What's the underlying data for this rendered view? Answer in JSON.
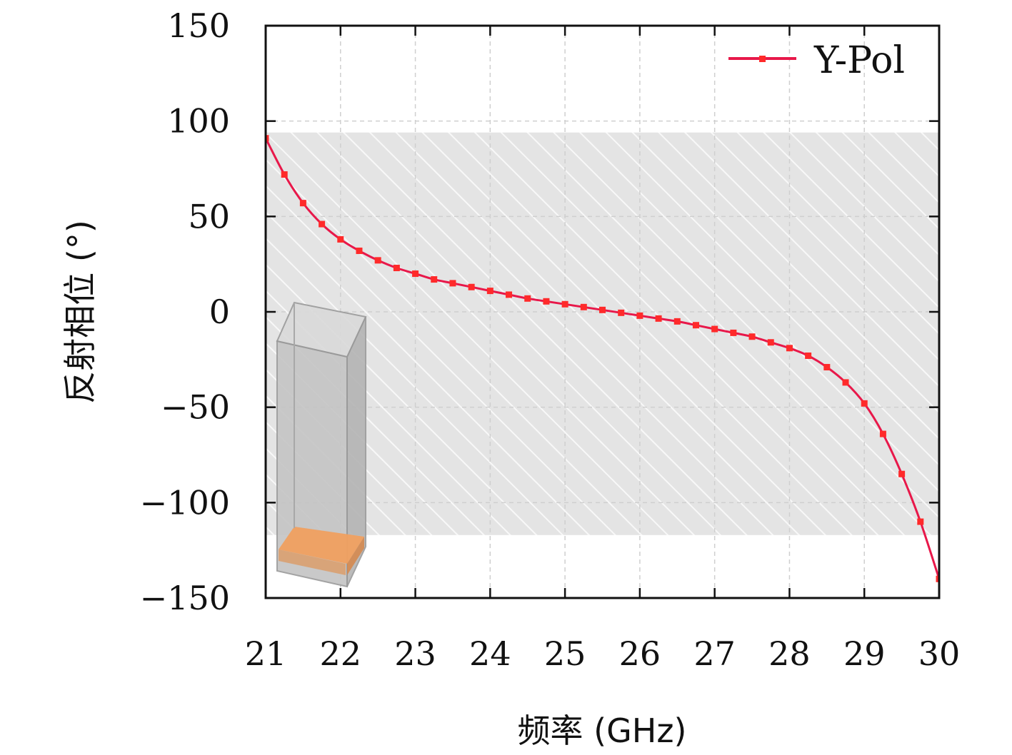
{
  "chart_data": {
    "type": "line",
    "xlabel": "频率 (GHz)",
    "ylabel": "反射相位 (°)",
    "xlim": [
      21,
      30
    ],
    "ylim": [
      -150,
      150
    ],
    "xticks": [
      21,
      22,
      23,
      24,
      25,
      26,
      27,
      28,
      29,
      30
    ],
    "yticks": [
      150,
      100,
      50,
      0,
      -50,
      -100,
      -150
    ],
    "grid": true,
    "legend_position": "top-right",
    "shaded_band": {
      "y_min": -117,
      "y_max": 94,
      "fill": "hatched gray"
    },
    "inset": "unit-cell 3D model (gray box with orange base)",
    "series": [
      {
        "name": "Y-Pol",
        "color": "#e8184a",
        "marker_color": "#ff2a2a",
        "x": [
          21.0,
          21.25,
          21.5,
          21.75,
          22.0,
          22.25,
          22.5,
          22.75,
          23.0,
          23.25,
          23.5,
          23.75,
          24.0,
          24.25,
          24.5,
          24.75,
          25.0,
          25.25,
          25.5,
          25.75,
          26.0,
          26.25,
          26.5,
          26.75,
          27.0,
          27.25,
          27.5,
          27.75,
          28.0,
          28.25,
          28.5,
          28.75,
          29.0,
          29.25,
          29.5,
          29.75,
          30.0
        ],
        "y": [
          91,
          72,
          57,
          46,
          38,
          32,
          27,
          23,
          20,
          17,
          15,
          13,
          11,
          9,
          7,
          5.5,
          4,
          2.5,
          1,
          -0.5,
          -2,
          -3.5,
          -5,
          -7,
          -9,
          -11,
          -13,
          -16,
          -19,
          -23,
          -29,
          -37,
          -48,
          -64,
          -85,
          -110,
          -140
        ]
      }
    ]
  }
}
